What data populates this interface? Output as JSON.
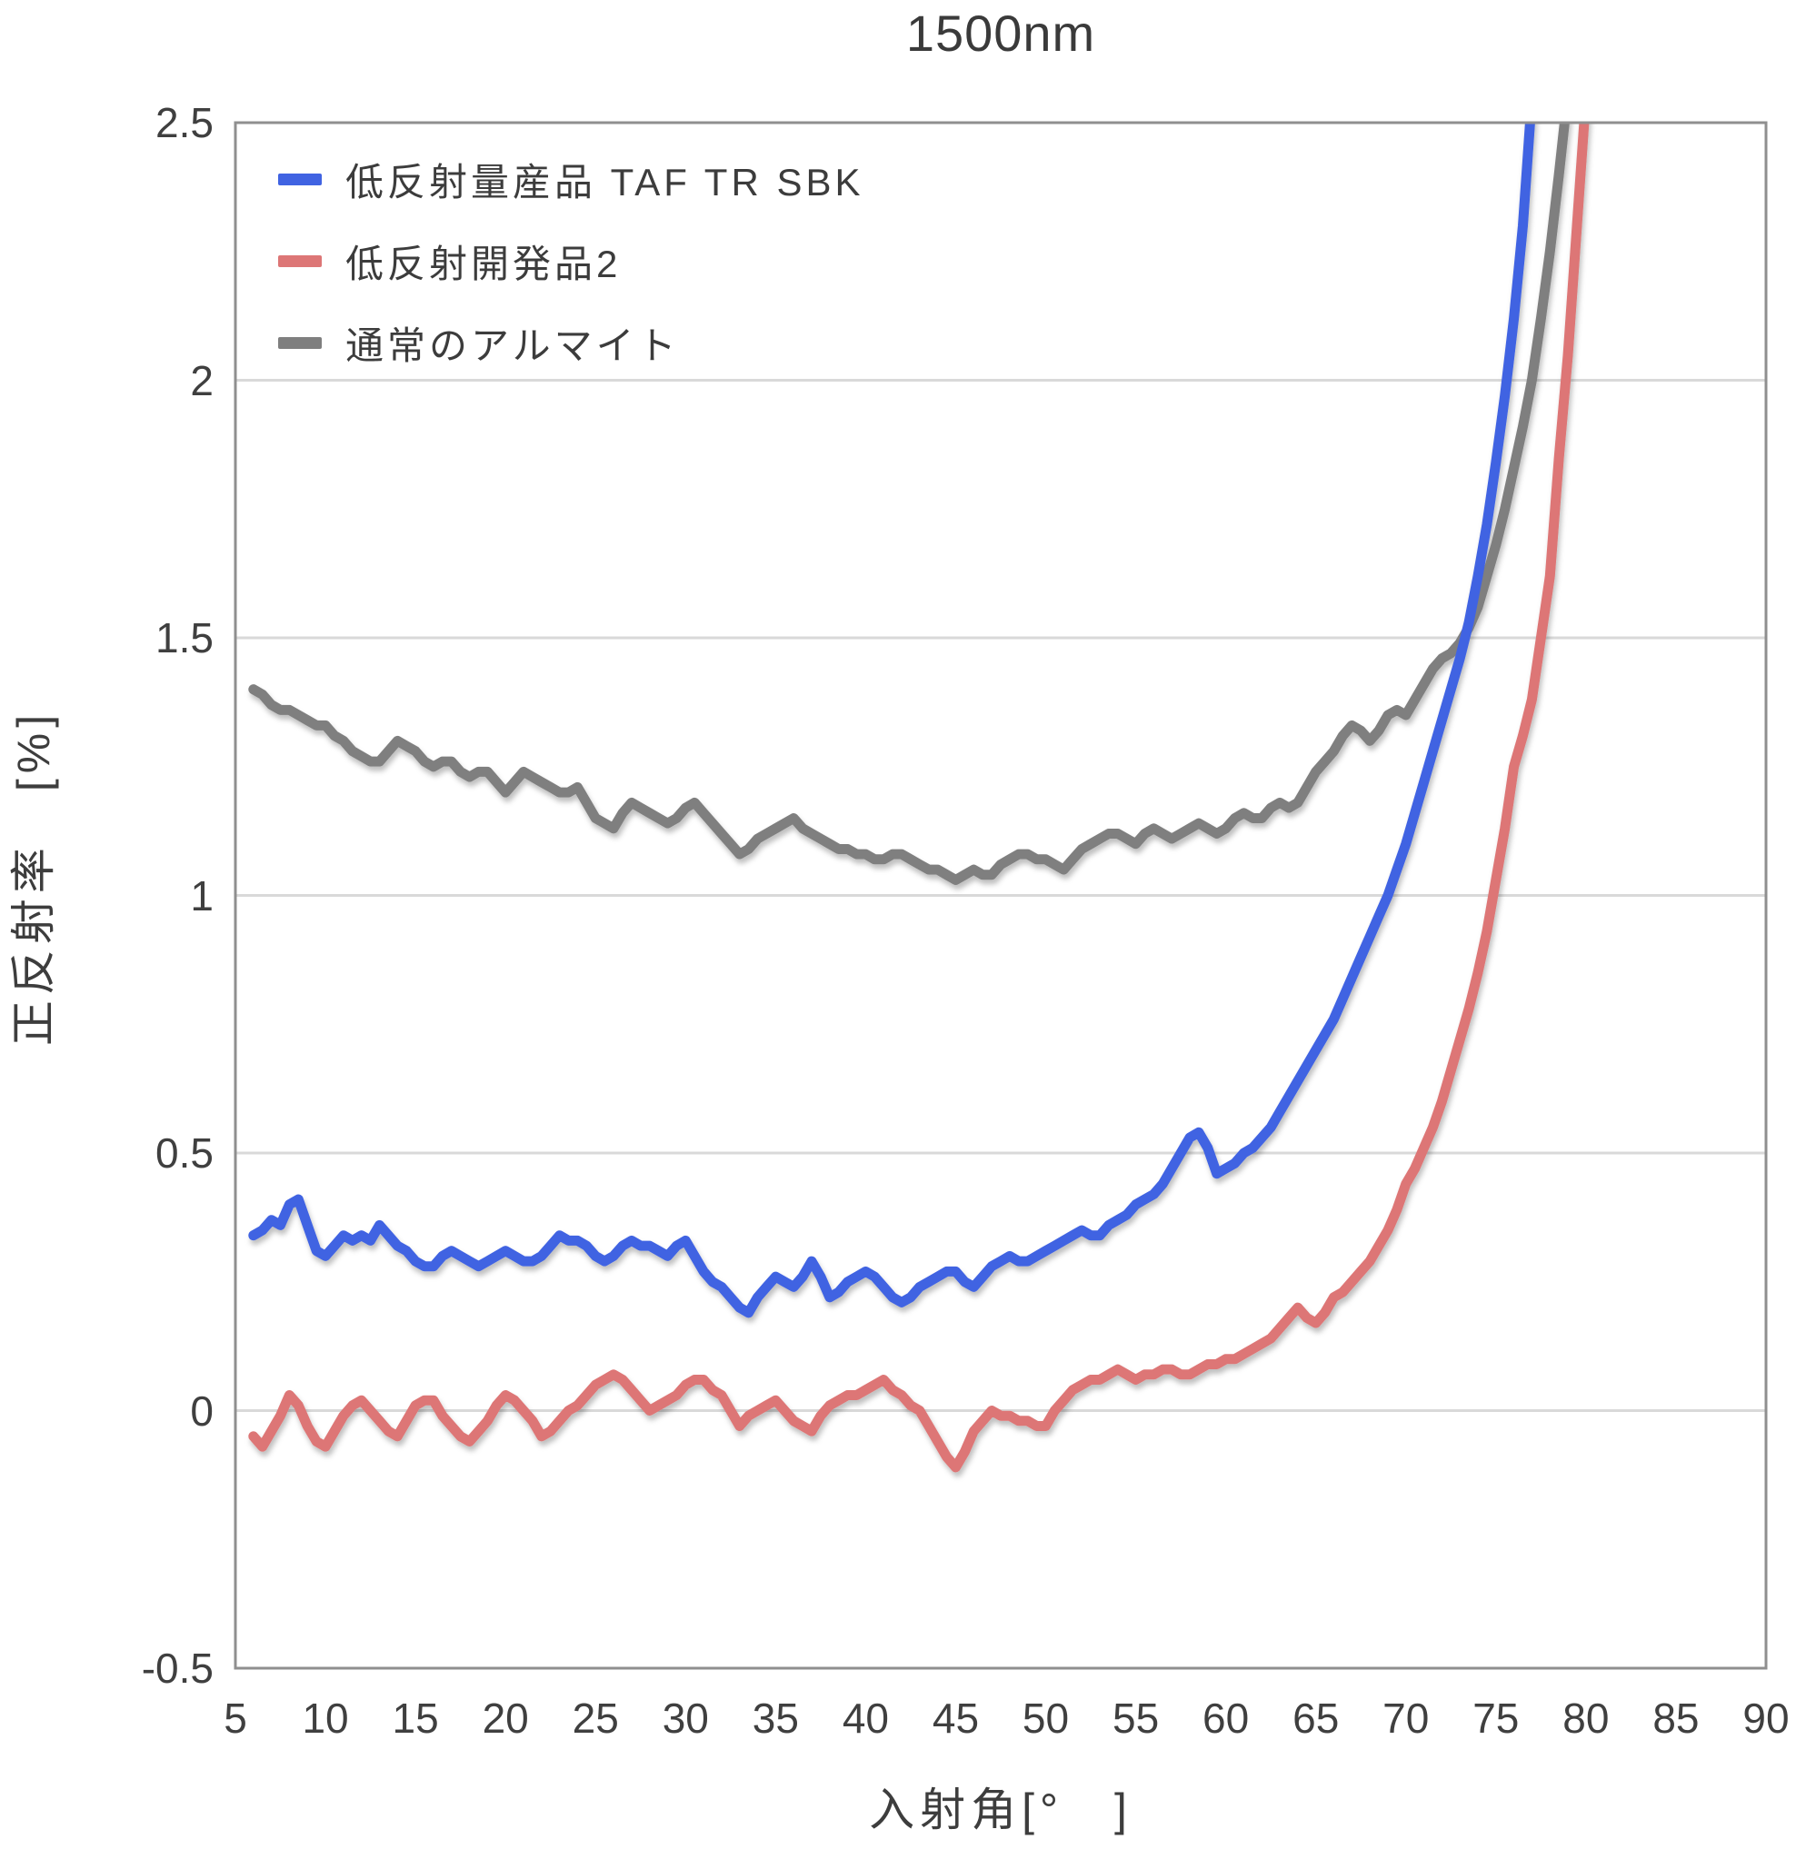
{
  "title": "1500nm",
  "axes": {
    "x_label": "入射角[°　]",
    "y_label": "正反射率　[%]"
  },
  "colors": {
    "blue": "#4063E2",
    "red": "#DD7676",
    "gray": "#7F7F7F",
    "grid": "#D9D9D9",
    "border": "#8F8F8F",
    "text": "#3D3D3D",
    "background": "#FFFFFF"
  },
  "legend": {
    "position": "top-left",
    "entries": [
      {
        "label": "低反射量産品 TAF TR SBK",
        "color": "#4063E2"
      },
      {
        "label": "低反射開発品2",
        "color": "#DD7676"
      },
      {
        "label": "通常のアルマイト",
        "color": "#7F7F7F"
      }
    ]
  },
  "chart_data": {
    "type": "line",
    "title": "1500nm",
    "xlabel": "入射角[°　]",
    "ylabel": "正反射率　[%]",
    "x_unit": "degrees",
    "y_unit": "percent",
    "xlim": [
      5,
      90
    ],
    "ylim": [
      -0.5,
      2.5
    ],
    "x_ticks": [
      5,
      10,
      15,
      20,
      25,
      30,
      35,
      40,
      45,
      50,
      55,
      60,
      65,
      70,
      75,
      80,
      85,
      90
    ],
    "y_ticks": [
      2.5,
      2,
      1.5,
      1,
      0.5,
      0,
      -0.5
    ],
    "grid": "horizontal-only",
    "legend_position": "top-left",
    "series": [
      {
        "name": "低反射量産品 TAF TR SBK",
        "color": "#4063E2",
        "x_start": 6,
        "x_step": 0.5,
        "values": [
          0.34,
          0.35,
          0.37,
          0.36,
          0.4,
          0.41,
          0.36,
          0.31,
          0.3,
          0.32,
          0.34,
          0.33,
          0.34,
          0.33,
          0.36,
          0.34,
          0.32,
          0.31,
          0.29,
          0.28,
          0.28,
          0.3,
          0.31,
          0.3,
          0.29,
          0.28,
          0.29,
          0.3,
          0.31,
          0.3,
          0.29,
          0.29,
          0.3,
          0.32,
          0.34,
          0.33,
          0.33,
          0.32,
          0.3,
          0.29,
          0.3,
          0.32,
          0.33,
          0.32,
          0.32,
          0.31,
          0.3,
          0.32,
          0.33,
          0.3,
          0.27,
          0.25,
          0.24,
          0.22,
          0.2,
          0.19,
          0.22,
          0.24,
          0.26,
          0.25,
          0.24,
          0.26,
          0.29,
          0.26,
          0.22,
          0.23,
          0.25,
          0.26,
          0.27,
          0.26,
          0.24,
          0.22,
          0.21,
          0.22,
          0.24,
          0.25,
          0.26,
          0.27,
          0.27,
          0.25,
          0.24,
          0.26,
          0.28,
          0.29,
          0.3,
          0.29,
          0.29,
          0.3,
          0.31,
          0.32,
          0.33,
          0.34,
          0.35,
          0.34,
          0.34,
          0.36,
          0.37,
          0.38,
          0.4,
          0.41,
          0.42,
          0.44,
          0.47,
          0.5,
          0.53,
          0.54,
          0.51,
          0.46,
          0.47,
          0.48,
          0.5,
          0.51,
          0.53,
          0.55,
          0.58,
          0.61,
          0.64,
          0.67,
          0.7,
          0.73,
          0.76,
          0.8,
          0.84,
          0.88,
          0.92,
          0.96,
          1.0,
          1.05,
          1.1,
          1.16,
          1.22,
          1.28,
          1.34,
          1.4,
          1.46,
          1.53,
          1.62,
          1.72,
          1.84,
          1.97,
          2.12,
          2.3,
          2.55
        ]
      },
      {
        "name": "低反射開発品2",
        "color": "#DD7676",
        "x_start": 6,
        "x_step": 0.5,
        "values": [
          -0.05,
          -0.07,
          -0.04,
          -0.01,
          0.03,
          0.01,
          -0.03,
          -0.06,
          -0.07,
          -0.04,
          -0.01,
          0.01,
          0.02,
          0.0,
          -0.02,
          -0.04,
          -0.05,
          -0.02,
          0.01,
          0.02,
          0.02,
          -0.01,
          -0.03,
          -0.05,
          -0.06,
          -0.04,
          -0.02,
          0.01,
          0.03,
          0.02,
          0.0,
          -0.02,
          -0.05,
          -0.04,
          -0.02,
          0.0,
          0.01,
          0.03,
          0.05,
          0.06,
          0.07,
          0.06,
          0.04,
          0.02,
          0.0,
          0.01,
          0.02,
          0.03,
          0.05,
          0.06,
          0.06,
          0.04,
          0.03,
          0.0,
          -0.03,
          -0.01,
          0.0,
          0.01,
          0.02,
          0.0,
          -0.02,
          -0.03,
          -0.04,
          -0.01,
          0.01,
          0.02,
          0.03,
          0.03,
          0.04,
          0.05,
          0.06,
          0.04,
          0.03,
          0.01,
          0.0,
          -0.03,
          -0.06,
          -0.09,
          -0.11,
          -0.08,
          -0.04,
          -0.02,
          0.0,
          -0.01,
          -0.01,
          -0.02,
          -0.02,
          -0.03,
          -0.03,
          0.0,
          0.02,
          0.04,
          0.05,
          0.06,
          0.06,
          0.07,
          0.08,
          0.07,
          0.06,
          0.07,
          0.07,
          0.08,
          0.08,
          0.07,
          0.07,
          0.08,
          0.09,
          0.09,
          0.1,
          0.1,
          0.11,
          0.12,
          0.13,
          0.14,
          0.16,
          0.18,
          0.2,
          0.18,
          0.17,
          0.19,
          0.22,
          0.23,
          0.25,
          0.27,
          0.29,
          0.32,
          0.35,
          0.39,
          0.44,
          0.47,
          0.51,
          0.55,
          0.6,
          0.66,
          0.72,
          0.78,
          0.85,
          0.93,
          1.03,
          1.13,
          1.25,
          1.31,
          1.38,
          1.5,
          1.62,
          1.85,
          2.05,
          2.3,
          2.55
        ]
      },
      {
        "name": "通常のアルマイト",
        "color": "#7F7F7F",
        "x_start": 6,
        "x_step": 0.5,
        "values": [
          1.4,
          1.39,
          1.37,
          1.36,
          1.36,
          1.35,
          1.34,
          1.33,
          1.33,
          1.31,
          1.3,
          1.28,
          1.27,
          1.26,
          1.26,
          1.28,
          1.3,
          1.29,
          1.28,
          1.26,
          1.25,
          1.26,
          1.26,
          1.24,
          1.23,
          1.24,
          1.24,
          1.22,
          1.2,
          1.22,
          1.24,
          1.23,
          1.22,
          1.21,
          1.2,
          1.2,
          1.21,
          1.18,
          1.15,
          1.14,
          1.13,
          1.16,
          1.18,
          1.17,
          1.16,
          1.15,
          1.14,
          1.15,
          1.17,
          1.18,
          1.16,
          1.14,
          1.12,
          1.1,
          1.08,
          1.09,
          1.11,
          1.12,
          1.13,
          1.14,
          1.15,
          1.13,
          1.12,
          1.11,
          1.1,
          1.09,
          1.09,
          1.08,
          1.08,
          1.07,
          1.07,
          1.08,
          1.08,
          1.07,
          1.06,
          1.05,
          1.05,
          1.04,
          1.03,
          1.04,
          1.05,
          1.04,
          1.04,
          1.06,
          1.07,
          1.08,
          1.08,
          1.07,
          1.07,
          1.06,
          1.05,
          1.07,
          1.09,
          1.1,
          1.11,
          1.12,
          1.12,
          1.11,
          1.1,
          1.12,
          1.13,
          1.12,
          1.11,
          1.12,
          1.13,
          1.14,
          1.13,
          1.12,
          1.13,
          1.15,
          1.16,
          1.15,
          1.15,
          1.17,
          1.18,
          1.17,
          1.18,
          1.21,
          1.24,
          1.26,
          1.28,
          1.31,
          1.33,
          1.32,
          1.3,
          1.32,
          1.35,
          1.36,
          1.35,
          1.38,
          1.41,
          1.44,
          1.46,
          1.47,
          1.49,
          1.52,
          1.56,
          1.62,
          1.68,
          1.75,
          1.83,
          1.91,
          2.0,
          2.12,
          2.25,
          2.4,
          2.56
        ]
      }
    ]
  }
}
